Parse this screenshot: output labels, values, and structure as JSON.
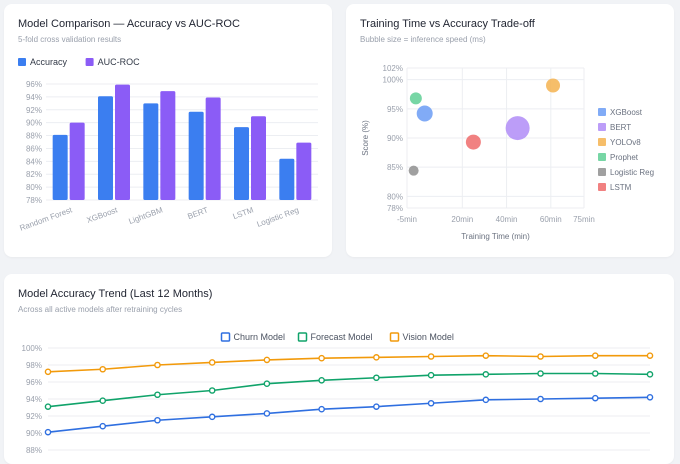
{
  "colors": {
    "accuracy": "#3b7ef0",
    "auc": "#8b5cf6",
    "grid": "#eceef2",
    "axis_text": "#9aa0ac"
  },
  "card1": {
    "title": "Model Comparison — Accuracy vs AUC-ROC",
    "subtitle": "5-fold cross validation results"
  },
  "card2": {
    "title": "Training Time vs Accuracy Trade-off",
    "subtitle": "Bubble size = inference speed (ms)"
  },
  "card3": {
    "title": "Model Accuracy Trend (Last 12 Months)",
    "subtitle": "Across all active models after retraining cycles"
  },
  "chart_data": [
    {
      "type": "bar",
      "categories": [
        "Random Forest",
        "XGBoost",
        "LightGBM",
        "BERT",
        "LSTM",
        "Logistic Reg"
      ],
      "series": [
        {
          "name": "Accuracy",
          "values": [
            88.1,
            94.1,
            93.0,
            91.7,
            89.3,
            84.4
          ],
          "color": "#3b7ef0"
        },
        {
          "name": "AUC-ROC",
          "values": [
            90.0,
            95.9,
            94.9,
            93.9,
            91.0,
            86.9
          ],
          "color": "#8b5cf6"
        }
      ],
      "ylim": [
        78,
        96
      ],
      "yticks": [
        "78%",
        "80%",
        "82%",
        "84%",
        "86%",
        "88%",
        "90%",
        "92%",
        "94%",
        "96%"
      ],
      "legend": "top-left"
    },
    {
      "type": "scatter",
      "xlabel": "Training Time (min)",
      "ylabel": "Score (%)",
      "xlim": [
        -5,
        75
      ],
      "ylim": [
        78,
        102
      ],
      "xticks": [
        "-5min",
        "20min",
        "40min",
        "60min",
        "75min"
      ],
      "yticks": [
        "78%",
        "80%",
        "85%",
        "90%",
        "95%",
        "100%",
        "102%"
      ],
      "legend": "right",
      "series": [
        {
          "name": "XGBoost",
          "x": 3,
          "y": 94.2,
          "size": 14,
          "color": "#6b9cf5"
        },
        {
          "name": "BERT",
          "x": 45,
          "y": 91.7,
          "size": 22,
          "color": "#b08cf7"
        },
        {
          "name": "YOLOv8",
          "x": 61,
          "y": 99.0,
          "size": 12,
          "color": "#f4b350"
        },
        {
          "name": "Prophet",
          "x": -1,
          "y": 96.8,
          "size": 10,
          "color": "#5fcf95"
        },
        {
          "name": "Logistic Reg",
          "x": -2,
          "y": 84.4,
          "size": 8,
          "color": "#8f8f8f"
        },
        {
          "name": "LSTM",
          "x": 25,
          "y": 89.3,
          "size": 13,
          "color": "#ef6b6b"
        }
      ]
    },
    {
      "type": "line",
      "ylim": [
        88,
        100
      ],
      "yticks": [
        "88%",
        "90%",
        "92%",
        "94%",
        "96%",
        "98%",
        "100%"
      ],
      "legend": "top-center",
      "series": [
        {
          "name": "Churn Model",
          "color": "#2f6fe0",
          "values": [
            90.1,
            90.8,
            91.5,
            91.9,
            92.3,
            92.8,
            93.1,
            93.5,
            93.9,
            94.0,
            94.1,
            94.2
          ]
        },
        {
          "name": "Forecast Model",
          "color": "#10a36a",
          "values": [
            93.1,
            93.8,
            94.5,
            95.0,
            95.8,
            96.2,
            96.5,
            96.8,
            96.9,
            97.0,
            97.0,
            96.9
          ]
        },
        {
          "name": "Vision Model",
          "color": "#f29a0b",
          "values": [
            97.2,
            97.5,
            98.0,
            98.3,
            98.6,
            98.8,
            98.9,
            99.0,
            99.1,
            99.0,
            99.1,
            99.1
          ]
        }
      ]
    }
  ]
}
